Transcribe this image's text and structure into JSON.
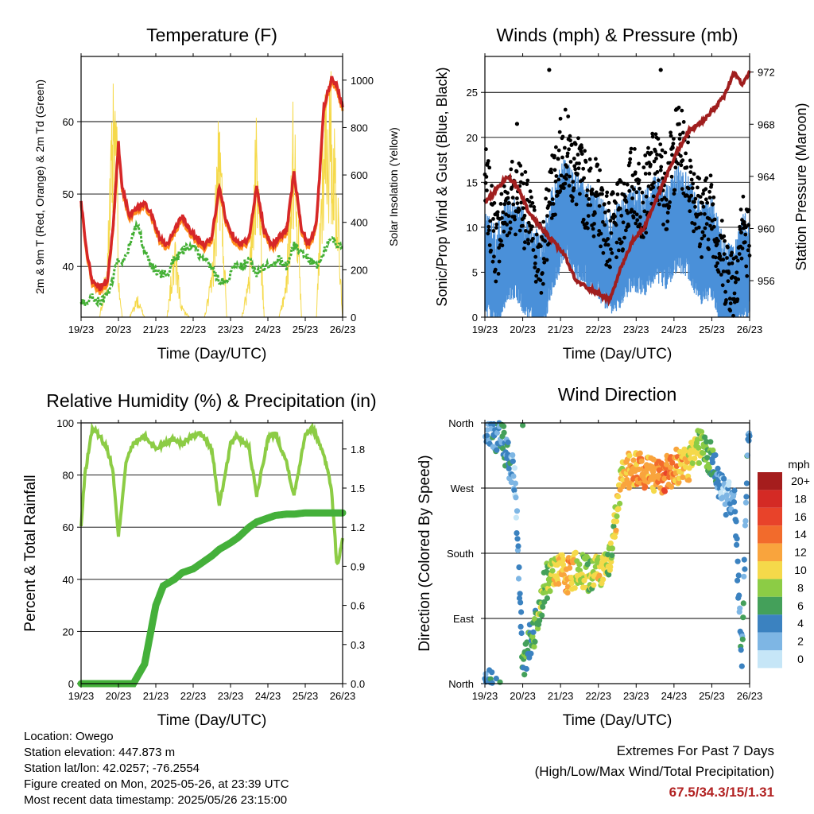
{
  "x_ticks": [
    "19/23",
    "20/23",
    "21/23",
    "22/23",
    "23/23",
    "24/23",
    "25/23",
    "26/23"
  ],
  "x_label": "Time (Day/UTC)",
  "colors": {
    "temp_2m": "#d62728",
    "temp_9m": "#ff8c1a",
    "dewpoint": "#44b035",
    "solar": "#f5d94a",
    "wind": "#4a90d9",
    "gust": "#000000",
    "pressure": "#a01e1e",
    "rh": "#8ccc45",
    "precip": "#44b03a"
  },
  "footer": {
    "location": "Location: Owego",
    "elevation": "Station elevation: 447.873 m",
    "latlon": "Station lat/lon: 42.0257; -76.2554",
    "created": "Figure created on Mon, 2025-05-26, at 23:39 UTC",
    "recent": "Most recent data timestamp: 2025/05/26 23:15:00"
  },
  "extremes": {
    "title": "Extremes For Past 7 Days",
    "subtitle": "(High/Low/Max Wind/Total Precipitation)",
    "values": "67.5/34.3/15/1.31"
  },
  "chart_data": [
    {
      "type": "line",
      "title": "Temperature (F)",
      "xlabel": "Time (Day/UTC)",
      "ylabel": "2m & 9m T (Red, Orange) & 2m Td (Green)",
      "y2label": "Solar Insolation (Yellow)",
      "ylim": [
        33,
        69
      ],
      "y_ticks": [
        40,
        50,
        60
      ],
      "y2lim": [
        0,
        1100
      ],
      "y2_ticks": [
        0,
        200,
        400,
        600,
        800,
        1000
      ],
      "x": [
        0,
        0.15,
        0.3,
        0.5,
        0.7,
        0.85,
        0.95,
        1.0,
        1.1,
        1.3,
        1.5,
        1.7,
        1.9,
        2.1,
        2.3,
        2.5,
        2.7,
        2.9,
        3.1,
        3.3,
        3.5,
        3.7,
        3.9,
        4.1,
        4.3,
        4.5,
        4.7,
        4.9,
        5.1,
        5.3,
        5.5,
        5.7,
        5.9,
        6.1,
        6.3,
        6.5,
        6.7,
        6.85,
        7.0
      ],
      "series": [
        {
          "name": "2m T",
          "values": [
            49,
            42,
            38,
            37,
            38,
            45,
            53,
            57,
            51,
            47,
            48,
            49,
            47,
            44,
            43,
            45,
            47,
            45,
            44,
            43,
            44,
            51,
            46,
            44,
            43,
            44,
            51,
            45,
            43,
            44,
            45,
            53,
            45,
            43,
            46,
            62,
            66,
            65,
            62
          ]
        },
        {
          "name": "2m Td",
          "values": [
            35,
            35,
            36,
            35,
            36,
            38,
            41,
            41,
            40,
            43,
            46,
            42,
            40,
            39,
            39,
            41,
            42,
            43,
            42,
            41,
            40,
            38,
            38,
            40,
            40,
            41,
            39,
            40,
            40,
            41,
            40,
            43,
            42,
            41,
            40,
            42,
            44,
            43,
            43
          ]
        },
        {
          "name": "Solar",
          "values": [
            0,
            0,
            0,
            0,
            300,
            980,
            1050,
            200,
            0,
            0,
            100,
            0,
            0,
            0,
            0,
            350,
            50,
            0,
            0,
            0,
            200,
            1000,
            0,
            0,
            0,
            200,
            970,
            0,
            0,
            0,
            200,
            1050,
            0,
            0,
            0,
            1050,
            1050,
            700,
            0
          ]
        }
      ]
    },
    {
      "type": "scatter",
      "title": "Winds (mph) & Pressure (mb)",
      "xlabel": "Time (Day/UTC)",
      "ylabel": "Sonic/Prop Wind & Gust (Blue, Black)",
      "y2label": "Station Pressure (Maroon)",
      "ylim": [
        0,
        29
      ],
      "y_ticks": [
        0,
        5,
        10,
        15,
        20,
        25
      ],
      "y2lim": [
        953.2,
        973.2
      ],
      "y2_ticks": [
        956,
        960,
        964,
        968,
        972
      ],
      "x": [
        0,
        0.3,
        0.6,
        0.9,
        1.2,
        1.5,
        1.8,
        2.1,
        2.4,
        2.7,
        3.0,
        3.3,
        3.6,
        3.9,
        4.2,
        4.5,
        4.8,
        5.1,
        5.4,
        5.7,
        6.0,
        6.3,
        6.6,
        6.8,
        7.0
      ],
      "series": [
        {
          "name": "Wind",
          "values": [
            6,
            4,
            8,
            7,
            5,
            3,
            9,
            12,
            10,
            9,
            8,
            6,
            7,
            9,
            8,
            10,
            9,
            11,
            10,
            7,
            8,
            3,
            2,
            6,
            5
          ]
        },
        {
          "name": "Gust",
          "values": [
            15,
            8,
            13,
            14,
            10,
            6,
            15,
            19,
            16,
            14,
            13,
            9,
            11,
            15,
            13,
            17,
            14,
            20,
            16,
            11,
            12,
            6,
            4,
            10,
            8
          ]
        },
        {
          "name": "Pressure",
          "values": [
            962,
            963,
            964,
            963,
            961,
            960,
            959,
            958,
            956,
            955.5,
            955,
            954.5,
            957,
            959,
            960,
            962,
            964,
            966,
            967.5,
            968,
            969,
            970,
            972,
            971,
            972
          ]
        }
      ],
      "outliers": [
        {
          "x": 0.85,
          "y": 21.5
        },
        {
          "x": 1.7,
          "y": 27.5
        },
        {
          "x": 4.65,
          "y": 27.5
        }
      ]
    },
    {
      "type": "line",
      "title": "Relative Humidity (%) & Precipitation (in)",
      "xlabel": "Time (Day/UTC)",
      "ylabel": "Percent & Total Rainfall",
      "ylim": [
        0,
        100
      ],
      "y_ticks": [
        0,
        20,
        40,
        60,
        80,
        100
      ],
      "y2lim": [
        0,
        2.0
      ],
      "y2_ticks": [
        0.0,
        0.3,
        0.6,
        0.9,
        1.2,
        1.5,
        1.8
      ],
      "x": [
        0,
        0.1,
        0.3,
        0.5,
        0.7,
        0.85,
        1.0,
        1.2,
        1.4,
        1.7,
        2.0,
        2.2,
        2.5,
        2.7,
        3.0,
        3.2,
        3.5,
        3.7,
        4.0,
        4.2,
        4.5,
        4.7,
        5.0,
        5.2,
        5.5,
        5.7,
        6.0,
        6.2,
        6.5,
        6.7,
        6.85,
        7.0
      ],
      "series": [
        {
          "name": "RH",
          "values": [
            60,
            80,
            98,
            95,
            90,
            82,
            56,
            85,
            92,
            95,
            90,
            92,
            94,
            92,
            95,
            96,
            90,
            68,
            92,
            95,
            90,
            72,
            94,
            96,
            85,
            72,
            96,
            98,
            88,
            75,
            45,
            55
          ]
        },
        {
          "name": "Precip",
          "values": [
            0,
            0,
            0,
            0,
            0,
            0,
            0,
            0,
            0,
            0.15,
            0.6,
            0.75,
            0.8,
            0.85,
            0.88,
            0.92,
            0.98,
            1.03,
            1.08,
            1.12,
            1.2,
            1.24,
            1.27,
            1.29,
            1.3,
            1.3,
            1.31,
            1.31,
            1.31,
            1.31,
            1.31,
            1.31
          ]
        }
      ]
    },
    {
      "type": "scatter",
      "title": "Wind Direction",
      "xlabel": "Time (Day/UTC)",
      "ylabel": "Direction (Colored By Speed)",
      "ylim": [
        0,
        360
      ],
      "y_ticks": [
        "North",
        "East",
        "South",
        "West",
        "North"
      ],
      "legend_title": "mph",
      "legend_labels": [
        "20+",
        "18",
        "16",
        "14",
        "12",
        "10",
        "8",
        "6",
        "4",
        "2",
        "0"
      ],
      "legend_colors": [
        "#a51d1d",
        "#d42a25",
        "#e8432a",
        "#f26b2c",
        "#f9a43d",
        "#f5d94a",
        "#8ccc45",
        "#44a05a",
        "#3b82c0",
        "#7eb6e4",
        "#c6e6f7"
      ],
      "x": [
        0.1,
        0.3,
        0.5,
        0.8,
        1.0,
        1.2,
        1.4,
        1.6,
        1.9,
        2.2,
        2.5,
        2.8,
        3.0,
        3.3,
        3.6,
        3.9,
        4.2,
        4.5,
        4.8,
        5.1,
        5.4,
        5.7,
        6.0,
        6.3,
        6.6,
        6.8,
        6.95
      ],
      "values": [
        355,
        345,
        330,
        280,
        20,
        60,
        90,
        140,
        155,
        150,
        160,
        150,
        155,
        170,
        280,
        300,
        295,
        285,
        290,
        300,
        305,
        330,
        310,
        260,
        250,
        30,
        345
      ],
      "speeds": [
        3,
        4,
        5,
        2,
        5,
        6,
        7,
        8,
        10,
        12,
        9,
        8,
        10,
        8,
        10,
        12,
        13,
        12,
        14,
        12,
        10,
        8,
        6,
        2,
        3,
        4,
        3
      ]
    }
  ]
}
